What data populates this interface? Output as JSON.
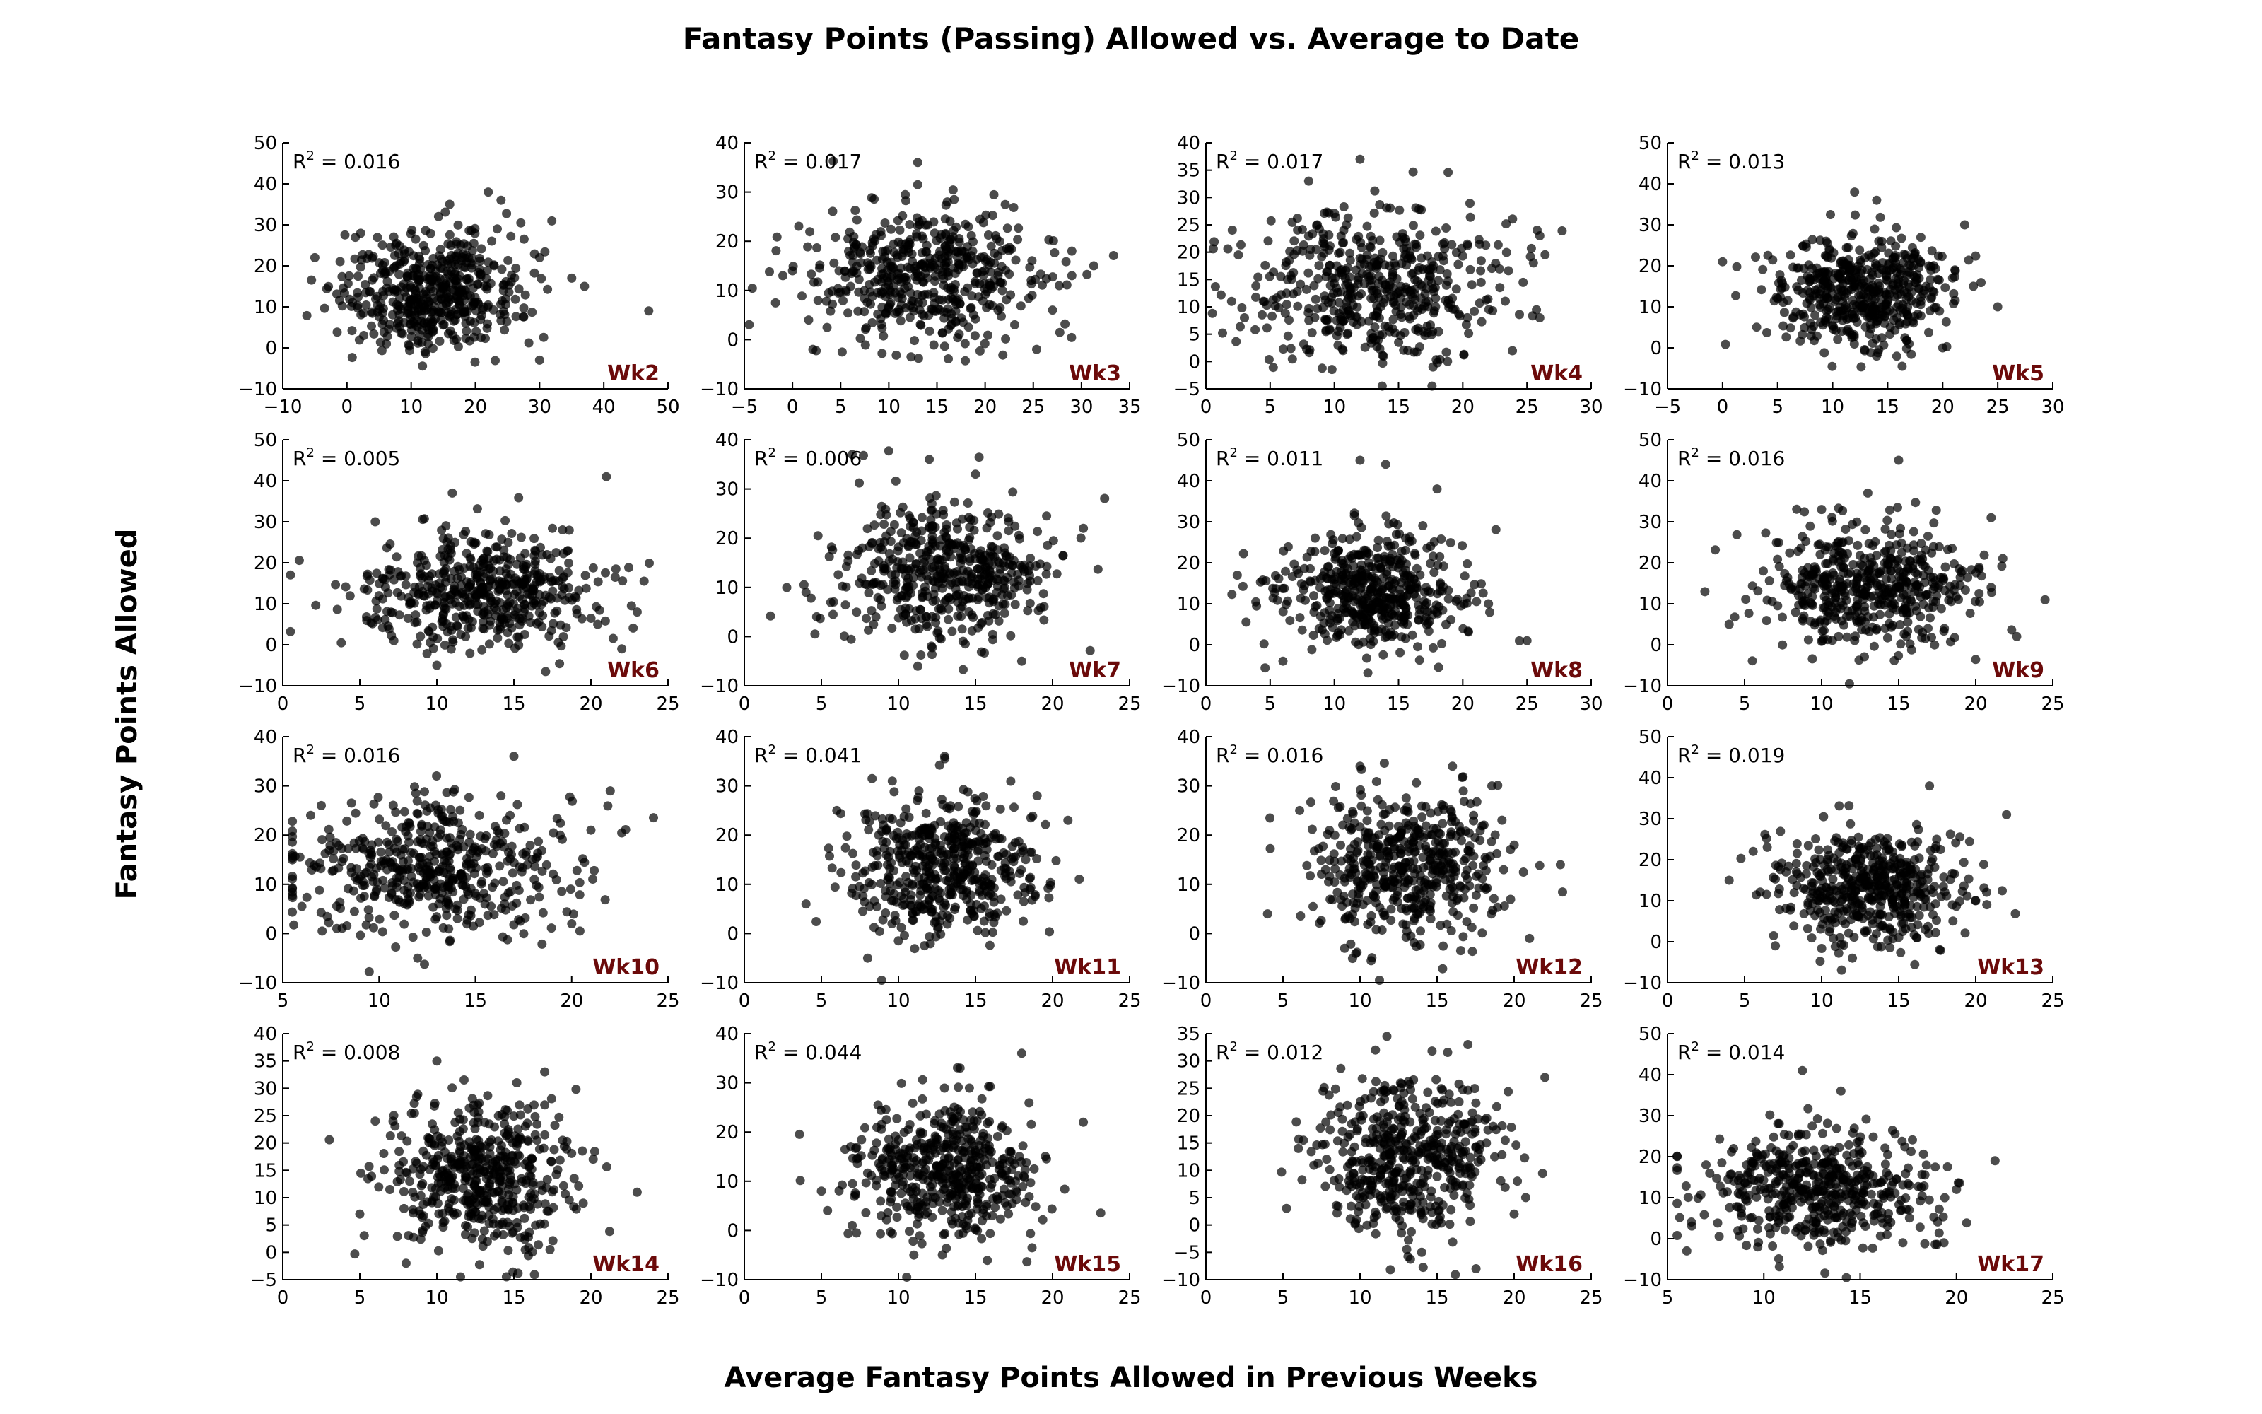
{
  "figure": {
    "title": "Fantasy Points (Passing) Allowed vs. Average to Date",
    "xlabel": "Average Fantasy Points Allowed in Previous Weeks",
    "ylabel": "Fantasy Points Allowed",
    "point_color": "#000000",
    "week_label_color": "#6b0a0a"
  },
  "chart_data": [
    {
      "type": "scatter",
      "week": "Wk2",
      "r2_label": "0.016",
      "xlim": [
        -10,
        50
      ],
      "ylim": [
        -10,
        50
      ],
      "xticks": [
        -10,
        0,
        10,
        20,
        30,
        40,
        50
      ],
      "yticks": [
        -10,
        0,
        10,
        20,
        30,
        40,
        50
      ],
      "x_center": 13,
      "x_spread": 7,
      "y_center": 14,
      "y_spread": 7,
      "n_points": 500,
      "outliers": [
        [
          47,
          9
        ],
        [
          -5,
          22
        ],
        [
          30,
          -3
        ],
        [
          35,
          17
        ],
        [
          22,
          38
        ],
        [
          24,
          36
        ],
        [
          30,
          22
        ],
        [
          37,
          15
        ],
        [
          16,
          35
        ]
      ]
    },
    {
      "type": "scatter",
      "week": "Wk3",
      "r2_label": "0.017",
      "xlim": [
        -5,
        35
      ],
      "ylim": [
        -10,
        40
      ],
      "xticks": [
        -5,
        0,
        5,
        10,
        15,
        20,
        25,
        30,
        35
      ],
      "yticks": [
        -10,
        0,
        10,
        20,
        30,
        40
      ],
      "x_center": 14,
      "x_spread": 6,
      "y_center": 13,
      "y_spread": 7,
      "n_points": 500,
      "outliers": [
        [
          -1,
          13
        ],
        [
          29,
          18
        ],
        [
          29,
          13
        ],
        [
          13,
          36
        ],
        [
          27,
          6
        ],
        [
          0,
          14
        ]
      ]
    },
    {
      "type": "scatter",
      "week": "Wk4",
      "r2_label": "0.017",
      "xlim": [
        0,
        30
      ],
      "ylim": [
        -5,
        40
      ],
      "xticks": [
        0,
        5,
        10,
        15,
        20,
        25,
        30
      ],
      "yticks": [
        -5,
        0,
        5,
        10,
        15,
        20,
        25,
        30,
        35,
        40
      ],
      "x_center": 13,
      "x_spread": 5,
      "y_center": 14,
      "y_spread": 7,
      "n_points": 500,
      "outliers": [
        [
          2,
          11
        ],
        [
          26,
          23
        ],
        [
          26,
          8
        ],
        [
          12,
          37
        ],
        [
          8,
          33
        ],
        [
          3,
          8
        ]
      ]
    },
    {
      "type": "scatter",
      "week": "Wk5",
      "r2_label": "0.013",
      "xlim": [
        -5,
        30
      ],
      "ylim": [
        -10,
        50
      ],
      "xticks": [
        -5,
        0,
        5,
        10,
        15,
        20,
        25,
        30
      ],
      "yticks": [
        -10,
        0,
        10,
        20,
        30,
        40,
        50
      ],
      "x_center": 13,
      "x_spread": 4,
      "y_center": 14,
      "y_spread": 7,
      "n_points": 500,
      "outliers": [
        [
          0,
          21
        ],
        [
          25,
          10
        ],
        [
          12,
          38
        ],
        [
          14,
          36
        ],
        [
          22,
          30
        ],
        [
          20,
          0
        ]
      ]
    },
    {
      "type": "scatter",
      "week": "Wk6",
      "r2_label": "0.005",
      "xlim": [
        0,
        25
      ],
      "ylim": [
        -10,
        50
      ],
      "xticks": [
        0,
        5,
        10,
        15,
        20,
        25
      ],
      "yticks": [
        -10,
        0,
        10,
        20,
        30,
        40,
        50
      ],
      "x_center": 13,
      "x_spread": 4,
      "y_center": 13,
      "y_spread": 7,
      "n_points": 500,
      "outliers": [
        [
          21,
          41
        ],
        [
          6,
          30
        ],
        [
          11,
          37
        ],
        [
          23,
          8
        ],
        [
          22,
          -1
        ],
        [
          10,
          -5
        ]
      ]
    },
    {
      "type": "scatter",
      "week": "Wk7",
      "r2_label": "0.006",
      "xlim": [
        0,
        25
      ],
      "ylim": [
        -10,
        40
      ],
      "xticks": [
        0,
        5,
        10,
        15,
        20,
        25
      ],
      "yticks": [
        -10,
        0,
        10,
        20,
        30,
        40
      ],
      "x_center": 13,
      "x_spread": 3.5,
      "y_center": 13,
      "y_spread": 7,
      "n_points": 500,
      "outliers": [
        [
          7,
          37
        ],
        [
          12,
          36
        ],
        [
          22,
          22
        ],
        [
          18,
          -5
        ],
        [
          4,
          9
        ],
        [
          15,
          33
        ]
      ]
    },
    {
      "type": "scatter",
      "week": "Wk8",
      "r2_label": "0.011",
      "xlim": [
        0,
        30
      ],
      "ylim": [
        -10,
        50
      ],
      "xticks": [
        0,
        5,
        10,
        15,
        20,
        25,
        30
      ],
      "yticks": [
        -10,
        0,
        10,
        20,
        30,
        40,
        50
      ],
      "x_center": 13,
      "x_spread": 3.5,
      "y_center": 13,
      "y_spread": 7,
      "n_points": 500,
      "outliers": [
        [
          12,
          45
        ],
        [
          14,
          44
        ],
        [
          25,
          1
        ],
        [
          6,
          -4
        ],
        [
          18,
          38
        ],
        [
          22,
          10
        ]
      ]
    },
    {
      "type": "scatter",
      "week": "Wk9",
      "r2_label": "0.016",
      "xlim": [
        0,
        25
      ],
      "ylim": [
        -10,
        50
      ],
      "xticks": [
        0,
        5,
        10,
        15,
        20,
        25
      ],
      "yticks": [
        -10,
        0,
        10,
        20,
        30,
        40,
        50
      ],
      "x_center": 13,
      "x_spread": 3.5,
      "y_center": 14,
      "y_spread": 7,
      "n_points": 500,
      "outliers": [
        [
          15,
          45
        ],
        [
          4,
          5
        ],
        [
          21,
          31
        ],
        [
          13,
          37
        ],
        [
          10,
          33
        ],
        [
          21,
          14
        ]
      ]
    },
    {
      "type": "scatter",
      "week": "Wk10",
      "r2_label": "0.016",
      "xlim": [
        5,
        25
      ],
      "ylim": [
        -10,
        40
      ],
      "xticks": [
        5,
        10,
        15,
        20,
        25
      ],
      "yticks": [
        -10,
        0,
        10,
        20,
        30,
        40
      ],
      "x_center": 13,
      "x_spread": 3.5,
      "y_center": 13,
      "y_spread": 7,
      "n_points": 500,
      "outliers": [
        [
          22,
          29
        ],
        [
          17,
          36
        ],
        [
          21,
          21
        ],
        [
          7,
          26
        ],
        [
          12,
          -5
        ],
        [
          20,
          2
        ]
      ]
    },
    {
      "type": "scatter",
      "week": "Wk11",
      "r2_label": "0.041",
      "xlim": [
        0,
        25
      ],
      "ylim": [
        -10,
        40
      ],
      "xticks": [
        0,
        5,
        10,
        15,
        20,
        25
      ],
      "yticks": [
        -10,
        0,
        10,
        20,
        30,
        40
      ],
      "x_center": 13,
      "x_spread": 3,
      "y_center": 14,
      "y_spread": 7,
      "n_points": 500,
      "outliers": [
        [
          4,
          6
        ],
        [
          21,
          23
        ],
        [
          13,
          36
        ],
        [
          8,
          -5
        ],
        [
          6,
          25
        ],
        [
          19,
          28
        ]
      ]
    },
    {
      "type": "scatter",
      "week": "Wk12",
      "r2_label": "0.016",
      "xlim": [
        0,
        25
      ],
      "ylim": [
        -10,
        40
      ],
      "xticks": [
        0,
        5,
        10,
        15,
        20,
        25
      ],
      "yticks": [
        -10,
        0,
        10,
        20,
        30,
        40
      ],
      "x_center": 13,
      "x_spread": 3,
      "y_center": 14,
      "y_spread": 7,
      "n_points": 500,
      "outliers": [
        [
          21,
          -1
        ],
        [
          23,
          14
        ],
        [
          4,
          4
        ],
        [
          10,
          34
        ],
        [
          16,
          34
        ],
        [
          9,
          -3
        ]
      ]
    },
    {
      "type": "scatter",
      "week": "Wk13",
      "r2_label": "0.019",
      "xlim": [
        0,
        25
      ],
      "ylim": [
        -10,
        50
      ],
      "xticks": [
        0,
        5,
        10,
        15,
        20,
        25
      ],
      "yticks": [
        -10,
        0,
        10,
        20,
        30,
        40,
        50
      ],
      "x_center": 13,
      "x_spread": 3,
      "y_center": 13,
      "y_spread": 7,
      "n_points": 500,
      "outliers": [
        [
          22,
          31
        ],
        [
          4,
          15
        ],
        [
          17,
          38
        ],
        [
          7,
          -1
        ],
        [
          12,
          -4
        ],
        [
          20,
          10
        ]
      ]
    },
    {
      "type": "scatter",
      "week": "Wk14",
      "r2_label": "0.008",
      "xlim": [
        0,
        25
      ],
      "ylim": [
        -5,
        40
      ],
      "xticks": [
        0,
        5,
        10,
        15,
        20,
        25
      ],
      "yticks": [
        -5,
        0,
        5,
        10,
        15,
        20,
        25,
        30,
        35,
        40
      ],
      "x_center": 13,
      "x_spread": 3,
      "y_center": 14,
      "y_spread": 7,
      "n_points": 500,
      "outliers": [
        [
          23,
          11
        ],
        [
          6,
          24
        ],
        [
          5,
          7
        ],
        [
          10,
          35
        ],
        [
          17,
          33
        ],
        [
          8,
          -2
        ]
      ]
    },
    {
      "type": "scatter",
      "week": "Wk15",
      "r2_label": "0.044",
      "xlim": [
        0,
        25
      ],
      "ylim": [
        -10,
        40
      ],
      "xticks": [
        0,
        5,
        10,
        15,
        20,
        25
      ],
      "yticks": [
        -10,
        0,
        10,
        20,
        30,
        40
      ],
      "x_center": 13,
      "x_spread": 3,
      "y_center": 12,
      "y_spread": 7,
      "n_points": 500,
      "outliers": [
        [
          22,
          22
        ],
        [
          5,
          8
        ],
        [
          18,
          36
        ],
        [
          11,
          -5
        ],
        [
          14,
          33
        ],
        [
          7,
          1
        ]
      ]
    },
    {
      "type": "scatter",
      "week": "Wk16",
      "r2_label": "0.012",
      "xlim": [
        0,
        25
      ],
      "ylim": [
        -10,
        35
      ],
      "xticks": [
        0,
        5,
        10,
        15,
        20,
        25
      ],
      "yticks": [
        -10,
        -5,
        0,
        5,
        10,
        15,
        20,
        25,
        30,
        35
      ],
      "x_center": 13,
      "x_spread": 3,
      "y_center": 12,
      "y_spread": 7,
      "n_points": 500,
      "outliers": [
        [
          22,
          27
        ],
        [
          6,
          14
        ],
        [
          17,
          33
        ],
        [
          14,
          -5
        ],
        [
          11,
          32
        ],
        [
          20,
          2
        ]
      ]
    },
    {
      "type": "scatter",
      "week": "Wk17",
      "r2_label": "0.014",
      "xlim": [
        5,
        25
      ],
      "ylim": [
        -10,
        50
      ],
      "xticks": [
        5,
        10,
        15,
        20,
        25
      ],
      "yticks": [
        -10,
        0,
        10,
        20,
        30,
        40,
        50
      ],
      "x_center": 13,
      "x_spread": 3,
      "y_center": 12,
      "y_spread": 7,
      "n_points": 500,
      "outliers": [
        [
          22,
          19
        ],
        [
          7,
          18
        ],
        [
          12,
          41
        ],
        [
          6,
          -3
        ],
        [
          14,
          36
        ],
        [
          20,
          12
        ]
      ]
    }
  ]
}
